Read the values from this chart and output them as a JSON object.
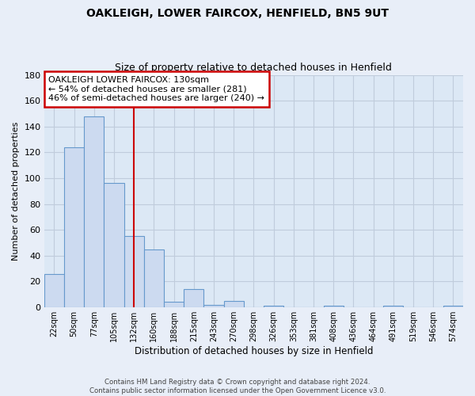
{
  "title": "OAKLEIGH, LOWER FAIRCOX, HENFIELD, BN5 9UT",
  "subtitle": "Size of property relative to detached houses in Henfield",
  "xlabel": "Distribution of detached houses by size in Henfield",
  "ylabel": "Number of detached properties",
  "bar_labels": [
    "22sqm",
    "50sqm",
    "77sqm",
    "105sqm",
    "132sqm",
    "160sqm",
    "188sqm",
    "215sqm",
    "243sqm",
    "270sqm",
    "298sqm",
    "326sqm",
    "353sqm",
    "381sqm",
    "408sqm",
    "436sqm",
    "464sqm",
    "491sqm",
    "519sqm",
    "546sqm",
    "574sqm"
  ],
  "bar_heights": [
    26,
    124,
    148,
    96,
    55,
    45,
    4,
    14,
    2,
    5,
    0,
    1,
    0,
    0,
    1,
    0,
    0,
    1,
    0,
    0,
    1
  ],
  "bar_color": "#ccdaf0",
  "bar_edge_color": "#6699cc",
  "vline_x": 4,
  "vline_color": "#cc0000",
  "ylim": [
    0,
    180
  ],
  "yticks": [
    0,
    20,
    40,
    60,
    80,
    100,
    120,
    140,
    160,
    180
  ],
  "annotation_title": "OAKLEIGH LOWER FAIRCOX: 130sqm",
  "annotation_line1": "← 54% of detached houses are smaller (281)",
  "annotation_line2": "46% of semi-detached houses are larger (240) →",
  "annotation_box_color": "#ffffff",
  "annotation_box_edge": "#cc0000",
  "footer_line1": "Contains HM Land Registry data © Crown copyright and database right 2024.",
  "footer_line2": "Contains public sector information licensed under the Open Government Licence v3.0.",
  "bg_color": "#e8eef8",
  "plot_bg_color": "#dce8f5",
  "grid_color": "#c0ccdc"
}
